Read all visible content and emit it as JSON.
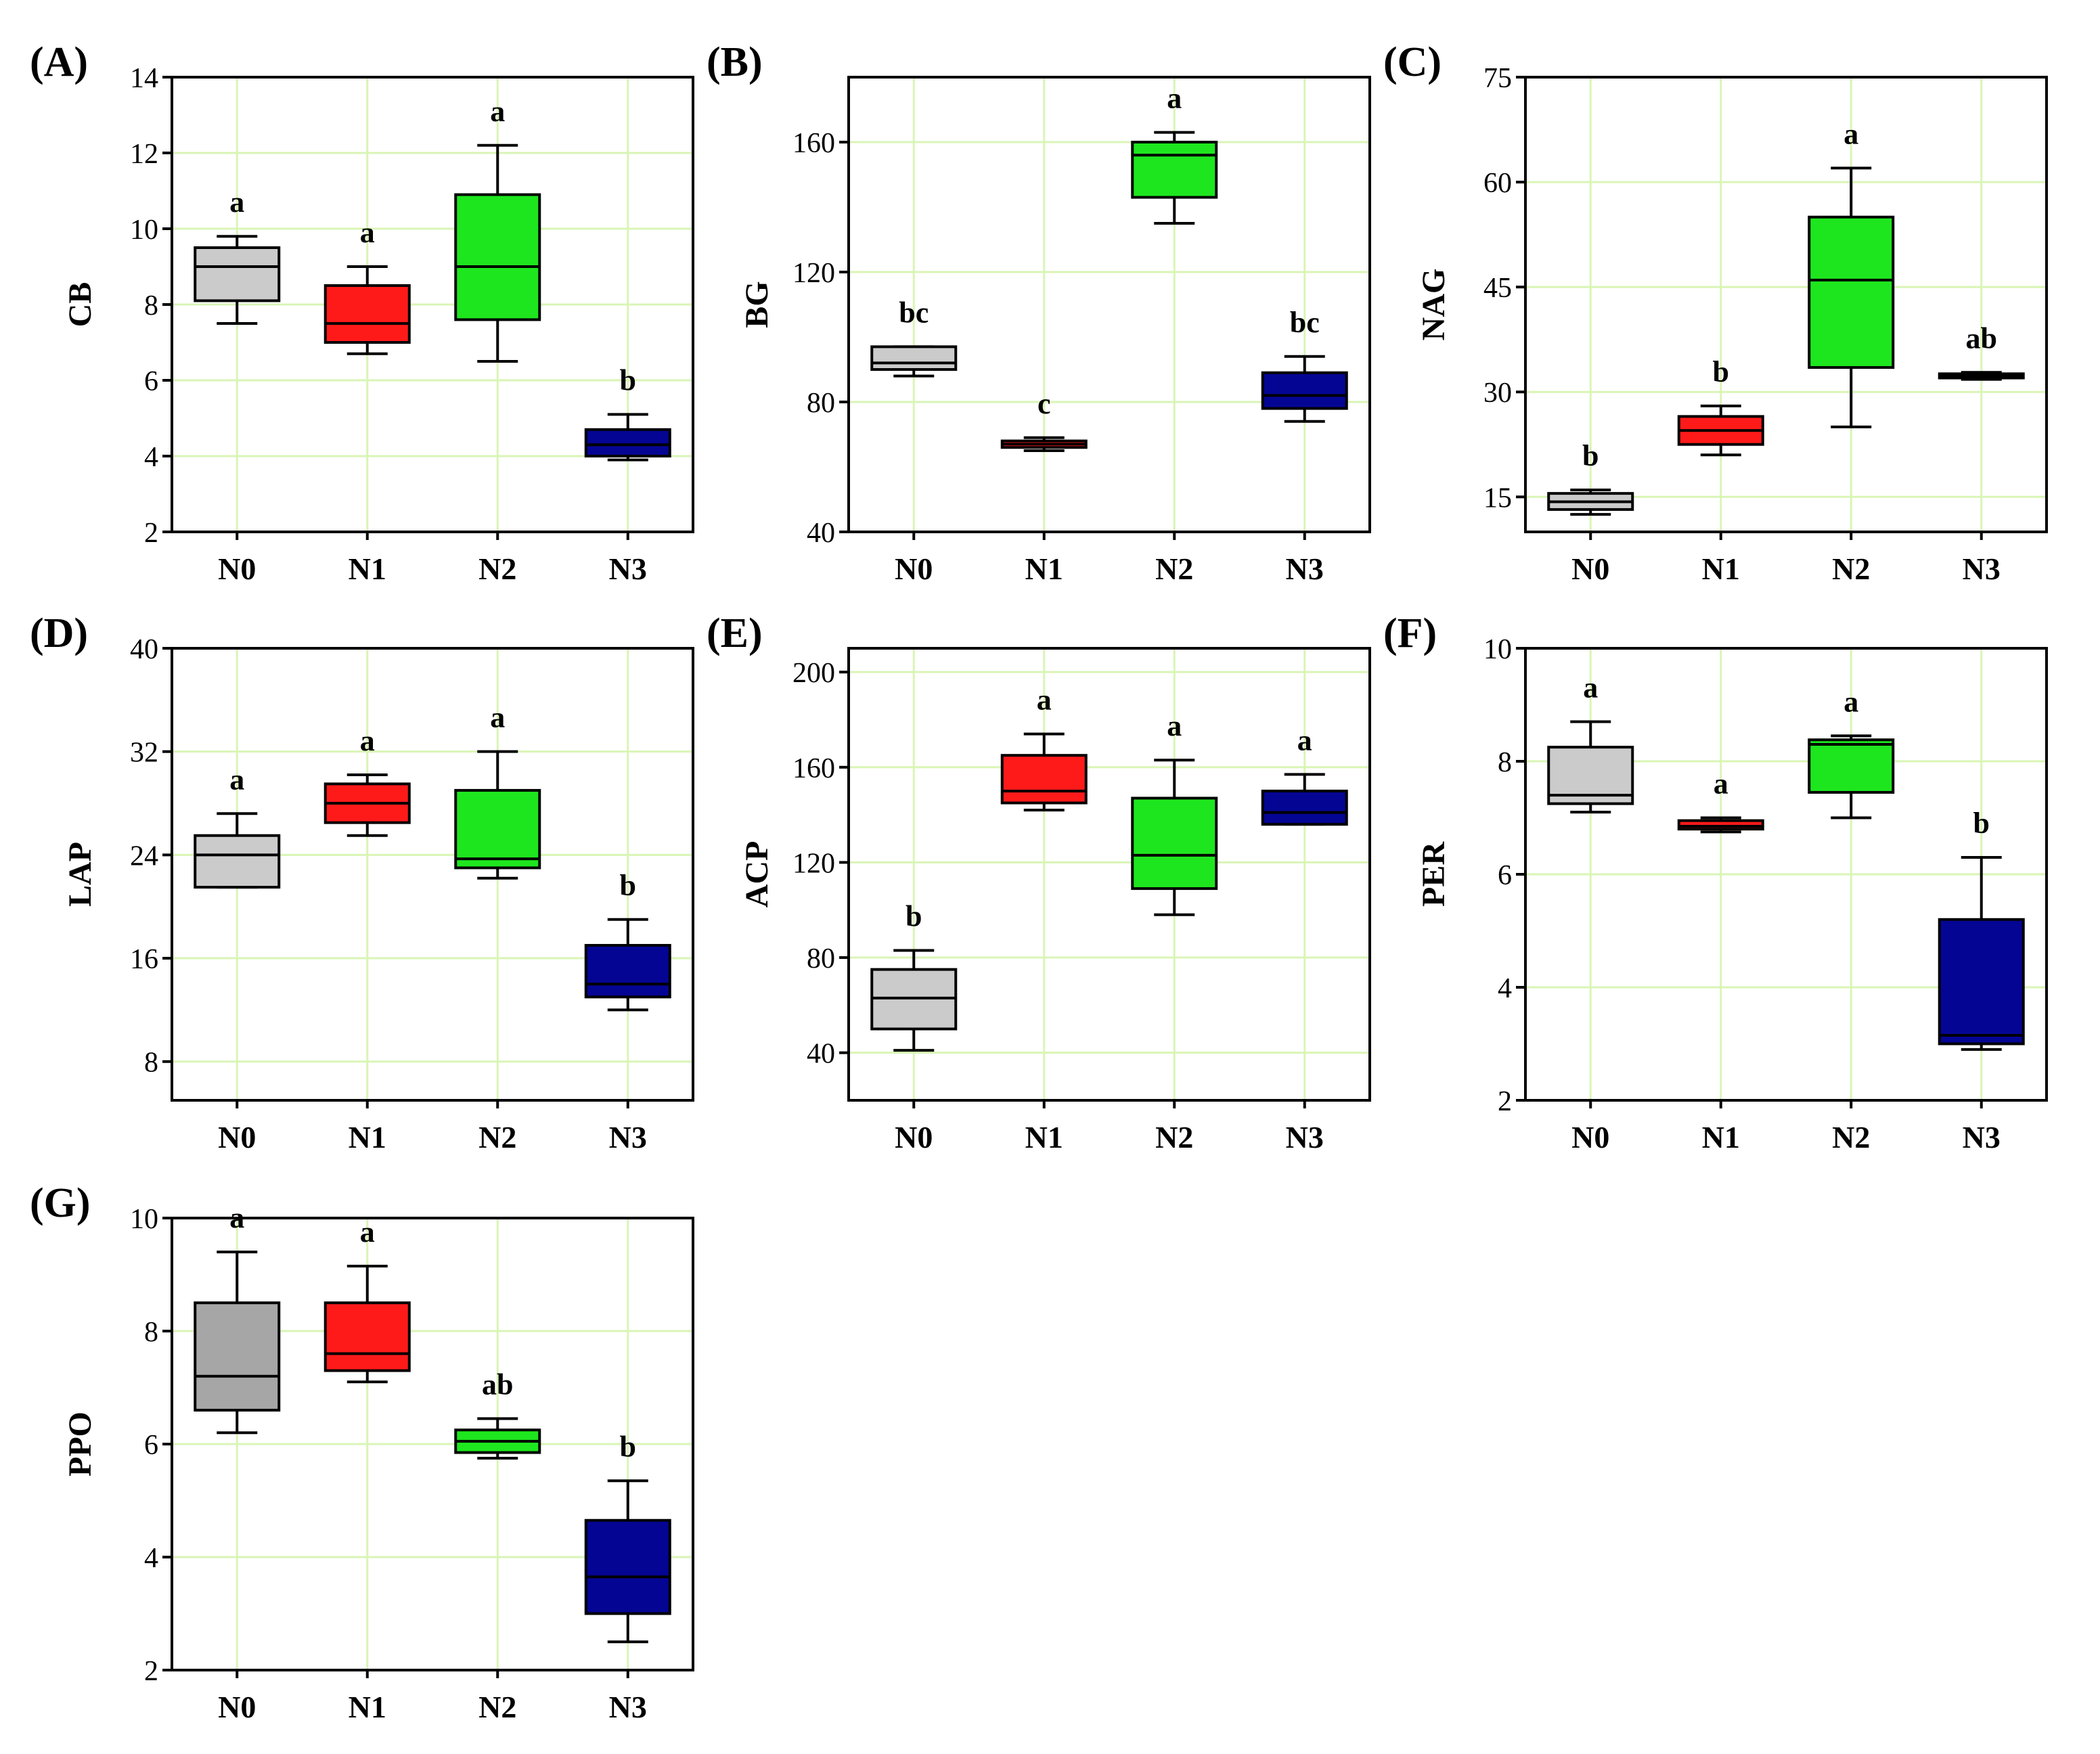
{
  "colors": {
    "N0": "#cbcbcb",
    "N1": "#ff1a1a",
    "N2": "#1ee61e",
    "N3": "#050594",
    "grid": "#d9f5b5",
    "frame": "#000000"
  },
  "chart_data": [
    {
      "type": "box",
      "panel_label": "(A)",
      "ylabel": "CB",
      "categories": [
        "N0",
        "N1",
        "N2",
        "N3"
      ],
      "ylim": [
        2,
        14
      ],
      "yticks": [
        2,
        4,
        6,
        8,
        10,
        12,
        14
      ],
      "series": [
        {
          "name": "N0",
          "whisker_low": 7.5,
          "q1": 8.1,
          "median": 9.0,
          "q3": 9.5,
          "whisker_high": 9.8,
          "letter": "a"
        },
        {
          "name": "N1",
          "whisker_low": 6.7,
          "q1": 7.0,
          "median": 7.5,
          "q3": 8.5,
          "whisker_high": 9.0,
          "letter": "a"
        },
        {
          "name": "N2",
          "whisker_low": 6.5,
          "q1": 7.6,
          "median": 9.0,
          "q3": 10.9,
          "whisker_high": 12.2,
          "letter": "a"
        },
        {
          "name": "N3",
          "whisker_low": 3.9,
          "q1": 4.0,
          "median": 4.3,
          "q3": 4.7,
          "whisker_high": 5.1,
          "letter": "b"
        }
      ]
    },
    {
      "type": "box",
      "panel_label": "(B)",
      "ylabel": "BG",
      "categories": [
        "N0",
        "N1",
        "N2",
        "N3"
      ],
      "ylim": [
        40,
        180
      ],
      "yticks": [
        40,
        80,
        120,
        160
      ],
      "series": [
        {
          "name": "N0",
          "whisker_low": 88,
          "q1": 90,
          "median": 92,
          "q3": 97,
          "whisker_high": 97,
          "letter": "bc"
        },
        {
          "name": "N1",
          "whisker_low": 65,
          "q1": 66,
          "median": 67,
          "q3": 68,
          "whisker_high": 69,
          "letter": "c"
        },
        {
          "name": "N2",
          "whisker_low": 135,
          "q1": 143,
          "median": 156,
          "q3": 160,
          "whisker_high": 163,
          "letter": "a"
        },
        {
          "name": "N3",
          "whisker_low": 74,
          "q1": 78,
          "median": 82,
          "q3": 89,
          "whisker_high": 94,
          "letter": "bc"
        }
      ]
    },
    {
      "type": "box",
      "panel_label": "(C)",
      "ylabel": "NAG",
      "categories": [
        "N0",
        "N1",
        "N2",
        "N3"
      ],
      "ylim": [
        10,
        75
      ],
      "yticks": [
        15,
        30,
        45,
        60,
        75
      ],
      "series": [
        {
          "name": "N0",
          "whisker_low": 12.5,
          "q1": 13.2,
          "median": 14.3,
          "q3": 15.5,
          "whisker_high": 16.0,
          "letter": "b"
        },
        {
          "name": "N1",
          "whisker_low": 21.0,
          "q1": 22.5,
          "median": 24.5,
          "q3": 26.5,
          "whisker_high": 28.0,
          "letter": "b"
        },
        {
          "name": "N2",
          "whisker_low": 25.0,
          "q1": 33.5,
          "median": 46.0,
          "q3": 55.0,
          "whisker_high": 62.0,
          "letter": "a"
        },
        {
          "name": "N3",
          "whisker_low": 31.8,
          "q1": 32.0,
          "median": 32.3,
          "q3": 32.6,
          "whisker_high": 32.8,
          "letter": "ab"
        }
      ]
    },
    {
      "type": "box",
      "panel_label": "(D)",
      "ylabel": "LAP",
      "categories": [
        "N0",
        "N1",
        "N2",
        "N3"
      ],
      "ylim": [
        5,
        40
      ],
      "yticks": [
        8,
        16,
        24,
        32,
        40
      ],
      "series": [
        {
          "name": "N0",
          "whisker_low": 21.5,
          "q1": 21.5,
          "median": 24.0,
          "q3": 25.5,
          "whisker_high": 27.2,
          "letter": "a"
        },
        {
          "name": "N1",
          "whisker_low": 25.5,
          "q1": 26.5,
          "median": 28.0,
          "q3": 29.5,
          "whisker_high": 30.2,
          "letter": "a"
        },
        {
          "name": "N2",
          "whisker_low": 22.2,
          "q1": 23.0,
          "median": 23.7,
          "q3": 29.0,
          "whisker_high": 32.0,
          "letter": "a"
        },
        {
          "name": "N3",
          "whisker_low": 12.0,
          "q1": 13.0,
          "median": 14.0,
          "q3": 17.0,
          "whisker_high": 19.0,
          "letter": "b"
        }
      ]
    },
    {
      "type": "box",
      "panel_label": "(E)",
      "ylabel": "ACP",
      "categories": [
        "N0",
        "N1",
        "N2",
        "N3"
      ],
      "ylim": [
        20,
        210
      ],
      "yticks": [
        40,
        80,
        120,
        160,
        200
      ],
      "series": [
        {
          "name": "N0",
          "whisker_low": 41,
          "q1": 50,
          "median": 63,
          "q3": 75,
          "whisker_high": 83,
          "letter": "b"
        },
        {
          "name": "N1",
          "whisker_low": 142,
          "q1": 145,
          "median": 150,
          "q3": 165,
          "whisker_high": 174,
          "letter": "a"
        },
        {
          "name": "N2",
          "whisker_low": 98,
          "q1": 109,
          "median": 123,
          "q3": 147,
          "whisker_high": 163,
          "letter": "a"
        },
        {
          "name": "N3",
          "whisker_low": 136,
          "q1": 136,
          "median": 141,
          "q3": 150,
          "whisker_high": 157,
          "letter": "a"
        }
      ]
    },
    {
      "type": "box",
      "panel_label": "(F)",
      "ylabel": "PER",
      "categories": [
        "N0",
        "N1",
        "N2",
        "N3"
      ],
      "ylim": [
        2,
        10
      ],
      "yticks": [
        2,
        4,
        6,
        8,
        10
      ],
      "series": [
        {
          "name": "N0",
          "whisker_low": 7.1,
          "q1": 7.25,
          "median": 7.4,
          "q3": 8.25,
          "whisker_high": 8.7,
          "letter": "a"
        },
        {
          "name": "N1",
          "whisker_low": 6.75,
          "q1": 6.8,
          "median": 6.85,
          "q3": 6.95,
          "whisker_high": 7.0,
          "letter": "a"
        },
        {
          "name": "N2",
          "whisker_low": 7.0,
          "q1": 7.45,
          "median": 8.3,
          "q3": 8.38,
          "whisker_high": 8.45,
          "letter": "a"
        },
        {
          "name": "N3",
          "whisker_low": 2.9,
          "q1": 3.0,
          "median": 3.15,
          "q3": 5.2,
          "whisker_high": 6.3,
          "letter": "b"
        }
      ]
    },
    {
      "type": "box",
      "panel_label": "(G)",
      "ylabel": "PPO",
      "categories": [
        "N0",
        "N1",
        "N2",
        "N3"
      ],
      "ylim": [
        2,
        10
      ],
      "yticks": [
        2,
        4,
        6,
        8,
        10
      ],
      "series": [
        {
          "name": "N0",
          "whisker_low": 6.2,
          "q1": 6.6,
          "median": 7.2,
          "q3": 8.5,
          "whisker_high": 9.4,
          "letter": "a",
          "fill": "#a6a6a6"
        },
        {
          "name": "N1",
          "whisker_low": 7.1,
          "q1": 7.3,
          "median": 7.6,
          "q3": 8.5,
          "whisker_high": 9.15,
          "letter": "a"
        },
        {
          "name": "N2",
          "whisker_low": 5.75,
          "q1": 5.85,
          "median": 6.05,
          "q3": 6.25,
          "whisker_high": 6.45,
          "letter": "ab"
        },
        {
          "name": "N3",
          "whisker_low": 2.5,
          "q1": 3.0,
          "median": 3.65,
          "q3": 4.65,
          "whisker_high": 5.35,
          "letter": "b"
        }
      ]
    }
  ]
}
